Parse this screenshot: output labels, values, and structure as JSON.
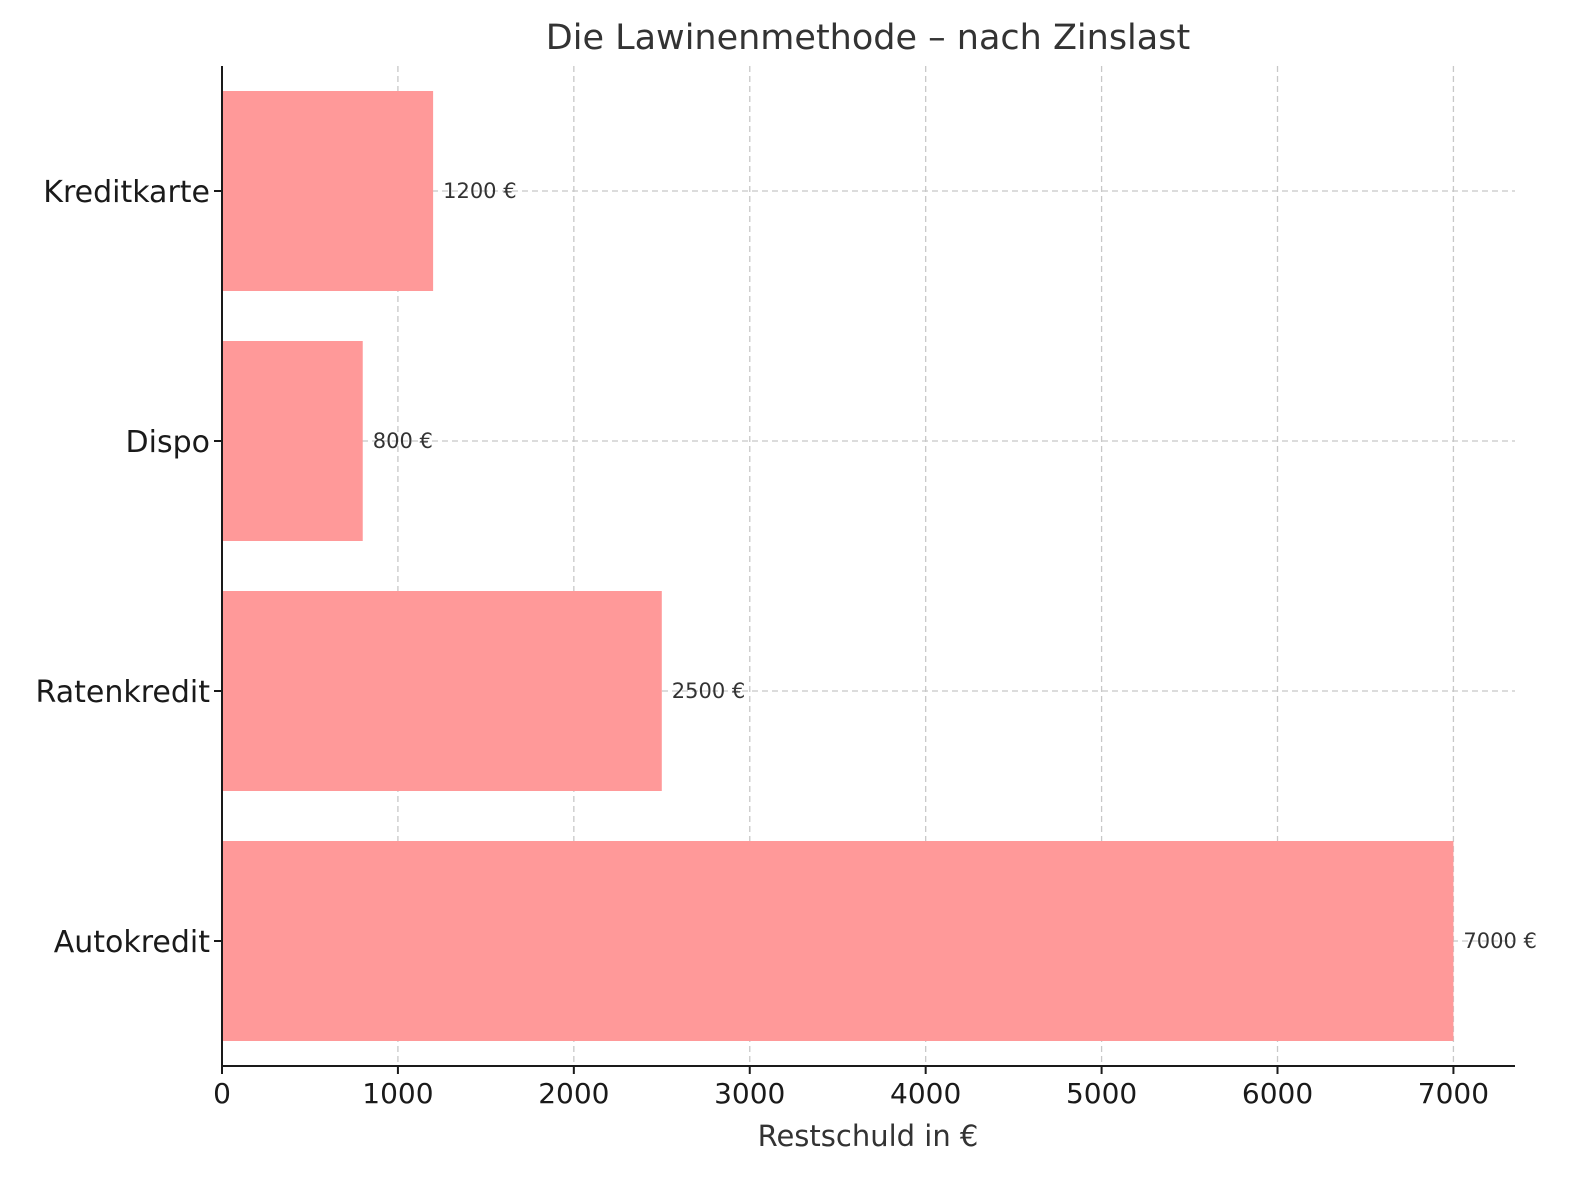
{
  "chart_data": {
    "type": "bar",
    "orientation": "horizontal",
    "title": "Die Lawinenmethode – nach Zinslast",
    "xlabel": "Restschuld in €",
    "ylabel": "",
    "categories": [
      "Kreditkarte",
      "Dispo",
      "Ratenkredit",
      "Autokredit"
    ],
    "values": [
      1200,
      800,
      2500,
      7000
    ],
    "data_labels": [
      "1200 €",
      "800 €",
      "2500 €",
      "7000 €"
    ],
    "xlim": [
      0,
      7350
    ],
    "xticks": [
      0,
      1000,
      2000,
      3000,
      4000,
      5000,
      6000,
      7000
    ],
    "xtick_labels": [
      "0",
      "1000",
      "2000",
      "3000",
      "4000",
      "5000",
      "6000",
      "7000"
    ],
    "bar_color": "#ff9999",
    "grid": true,
    "legend": "none"
  }
}
